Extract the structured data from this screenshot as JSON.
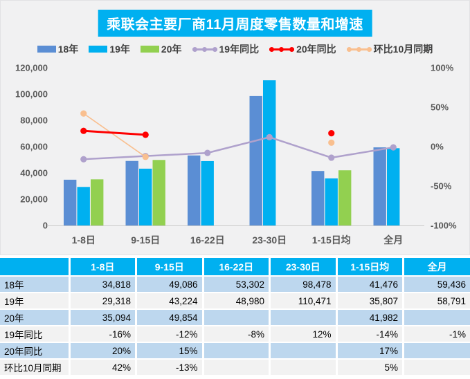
{
  "chart": {
    "title": "乘联会主要厂商11月周度零售数量和增速",
    "title_bg": "#00B0F0",
    "panel_bg": "#F1F1F2",
    "axis_text_color": "#595959",
    "baseline_color": "#C9C9C9"
  },
  "chart_data": {
    "type": "bar",
    "subtype": "grouped-bar-with-lines-combo",
    "categories": [
      "1-8日",
      "9-15日",
      "16-22日",
      "23-30日",
      "1-15日均",
      "全月"
    ],
    "series": [
      {
        "name": "18年",
        "kind": "bar",
        "color": "#5B8ED4",
        "values": [
          34818,
          49086,
          53302,
          98478,
          41476,
          59436
        ]
      },
      {
        "name": "19年",
        "kind": "bar",
        "color": "#00B0F0",
        "values": [
          29318,
          43224,
          48980,
          110471,
          35807,
          58791
        ]
      },
      {
        "name": "20年",
        "kind": "bar",
        "color": "#92D050",
        "values": [
          35094,
          49854,
          null,
          null,
          41982,
          null
        ]
      },
      {
        "name": "19年同比",
        "kind": "line",
        "color": "#AFA1CC",
        "width": 2.5,
        "values": [
          -16,
          -12,
          -8,
          12,
          -14,
          -1
        ]
      },
      {
        "name": "20年同比",
        "kind": "line",
        "color": "#FE0000",
        "width": 3,
        "values": [
          20,
          15,
          null,
          null,
          17,
          null
        ]
      },
      {
        "name": "环比10月同期",
        "kind": "line",
        "color": "#F9BF8F",
        "width": 1.6,
        "values": [
          42,
          -13,
          null,
          null,
          5,
          null
        ]
      }
    ],
    "left_axis": {
      "min": 0,
      "max": 120000,
      "step": 20000,
      "tick_labels": [
        "0",
        "20,000",
        "40,000",
        "60,000",
        "80,000",
        "100,000",
        "120,000"
      ]
    },
    "right_axis": {
      "min": -100,
      "max": 100,
      "step": 50,
      "tick_labels": [
        "-100%",
        "-50%",
        "0%",
        "50%",
        "100%"
      ]
    },
    "title": "乘联会主要厂商11月周度零售数量和增速",
    "xlabel": "",
    "ylabel": "",
    "legend_position": "top",
    "grid": false
  },
  "table": {
    "columns": [
      "",
      "1-8日",
      "9-15日",
      "16-22日",
      "23-30日",
      "1-15日均",
      "全月"
    ],
    "rows": [
      {
        "label": "18年",
        "values": [
          "34,818",
          "49,086",
          "53,302",
          "98,478",
          "41,476",
          "59,436"
        ]
      },
      {
        "label": "19年",
        "values": [
          "29,318",
          "43,224",
          "48,980",
          "110,471",
          "35,807",
          "58,791"
        ]
      },
      {
        "label": "20年",
        "values": [
          "35,094",
          "49,854",
          "",
          "",
          "41,982",
          ""
        ]
      },
      {
        "label": "19年同比",
        "values": [
          "-16%",
          "-12%",
          "-8%",
          "12%",
          "-14%",
          "-1%"
        ]
      },
      {
        "label": "20年同比",
        "values": [
          "20%",
          "15%",
          "",
          "",
          "17%",
          ""
        ]
      },
      {
        "label": "环比10月同期",
        "values": [
          "42%",
          "-13%",
          "",
          "",
          "5%",
          ""
        ]
      }
    ],
    "header_bg": "#00B0F0",
    "row_bg_odd": "#BDD7EE",
    "row_bg_even": "#F2F2F2"
  }
}
